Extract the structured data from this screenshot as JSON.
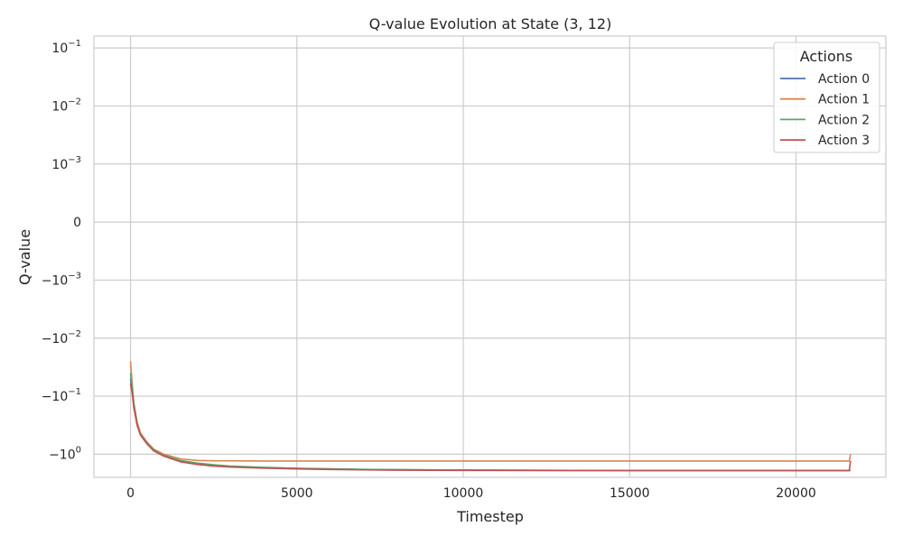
{
  "chart_data": {
    "type": "line",
    "title": "Q-value Evolution at State (3, 12)",
    "xlabel": "Timestep",
    "ylabel": "Q-value",
    "xlim": [
      -1100,
      22700
    ],
    "x_ticks": [
      0,
      5000,
      10000,
      15000,
      20000
    ],
    "x_tick_labels": [
      "0",
      "5000",
      "10000",
      "15000",
      "20000"
    ],
    "y_scale": "symlog",
    "y_linthresh": 0.001,
    "ylim": [
      -2.5,
      0.16
    ],
    "y_ticks": [
      {
        "value": 0.1,
        "base": "10",
        "exp": "−1",
        "sign": ""
      },
      {
        "value": 0.01,
        "base": "10",
        "exp": "−2",
        "sign": ""
      },
      {
        "value": 0.001,
        "base": "10",
        "exp": "−3",
        "sign": ""
      },
      {
        "value": 0,
        "base": "0",
        "exp": "",
        "sign": ""
      },
      {
        "value": -0.001,
        "base": "10",
        "exp": "−3",
        "sign": "−"
      },
      {
        "value": -0.01,
        "base": "10",
        "exp": "−2",
        "sign": "−"
      },
      {
        "value": -0.1,
        "base": "10",
        "exp": "−1",
        "sign": "−"
      },
      {
        "value": -1,
        "base": "10",
        "exp": "0",
        "sign": "−"
      }
    ],
    "grid": true,
    "legend_title": "Actions",
    "legend_position": "top-right",
    "series": [
      {
        "name": "Action 0",
        "color": "#4c72b0",
        "x": [
          0,
          50,
          100,
          200,
          300,
          500,
          700,
          1000,
          1500,
          2000,
          2500,
          3000,
          4000,
          5000,
          6000,
          7000,
          8000,
          10000,
          12000,
          15000,
          18000,
          20000,
          21600,
          21640
        ],
        "y": [
          -0.05,
          -0.08,
          -0.15,
          -0.3,
          -0.45,
          -0.65,
          -0.85,
          -1.05,
          -1.3,
          -1.45,
          -1.55,
          -1.62,
          -1.7,
          -1.76,
          -1.8,
          -1.83,
          -1.85,
          -1.87,
          -1.89,
          -1.9,
          -1.9,
          -1.9,
          -1.9,
          -1.9
        ]
      },
      {
        "name": "Action 1",
        "color": "#dd8452",
        "x": [
          0,
          50,
          100,
          200,
          300,
          500,
          700,
          1000,
          1500,
          2000,
          2500,
          3000,
          4000,
          5000,
          6000,
          8000,
          10000,
          12000,
          15000,
          18000,
          20000,
          21600,
          21640
        ],
        "y": [
          -0.025,
          -0.06,
          -0.13,
          -0.28,
          -0.43,
          -0.62,
          -0.82,
          -1.0,
          -1.2,
          -1.28,
          -1.3,
          -1.3,
          -1.31,
          -1.31,
          -1.31,
          -1.31,
          -1.31,
          -1.31,
          -1.31,
          -1.31,
          -1.31,
          -1.31,
          -1.0
        ]
      },
      {
        "name": "Action 2",
        "color": "#55a868",
        "x": [
          0,
          50,
          100,
          200,
          300,
          500,
          700,
          1000,
          1500,
          2000,
          2500,
          3000,
          4000,
          5000,
          6000,
          7000,
          8000,
          10000,
          12000,
          15000,
          18000,
          20000,
          21600,
          21640
        ],
        "y": [
          -0.04,
          -0.07,
          -0.14,
          -0.3,
          -0.45,
          -0.65,
          -0.85,
          -1.05,
          -1.28,
          -1.42,
          -1.52,
          -1.6,
          -1.68,
          -1.74,
          -1.78,
          -1.82,
          -1.85,
          -1.87,
          -1.89,
          -1.9,
          -1.9,
          -1.9,
          -1.9,
          -1.9
        ]
      },
      {
        "name": "Action 3",
        "color": "#c44e52",
        "x": [
          0,
          50,
          100,
          200,
          300,
          500,
          700,
          1000,
          1500,
          2000,
          2500,
          3000,
          4000,
          5000,
          6000,
          7000,
          8000,
          10000,
          12000,
          15000,
          18000,
          20000,
          21600,
          21640
        ],
        "y": [
          -0.06,
          -0.09,
          -0.16,
          -0.32,
          -0.47,
          -0.67,
          -0.88,
          -1.08,
          -1.35,
          -1.5,
          -1.6,
          -1.66,
          -1.74,
          -1.79,
          -1.83,
          -1.86,
          -1.88,
          -1.9,
          -1.91,
          -1.92,
          -1.92,
          -1.92,
          -1.92,
          -1.3
        ]
      }
    ]
  }
}
